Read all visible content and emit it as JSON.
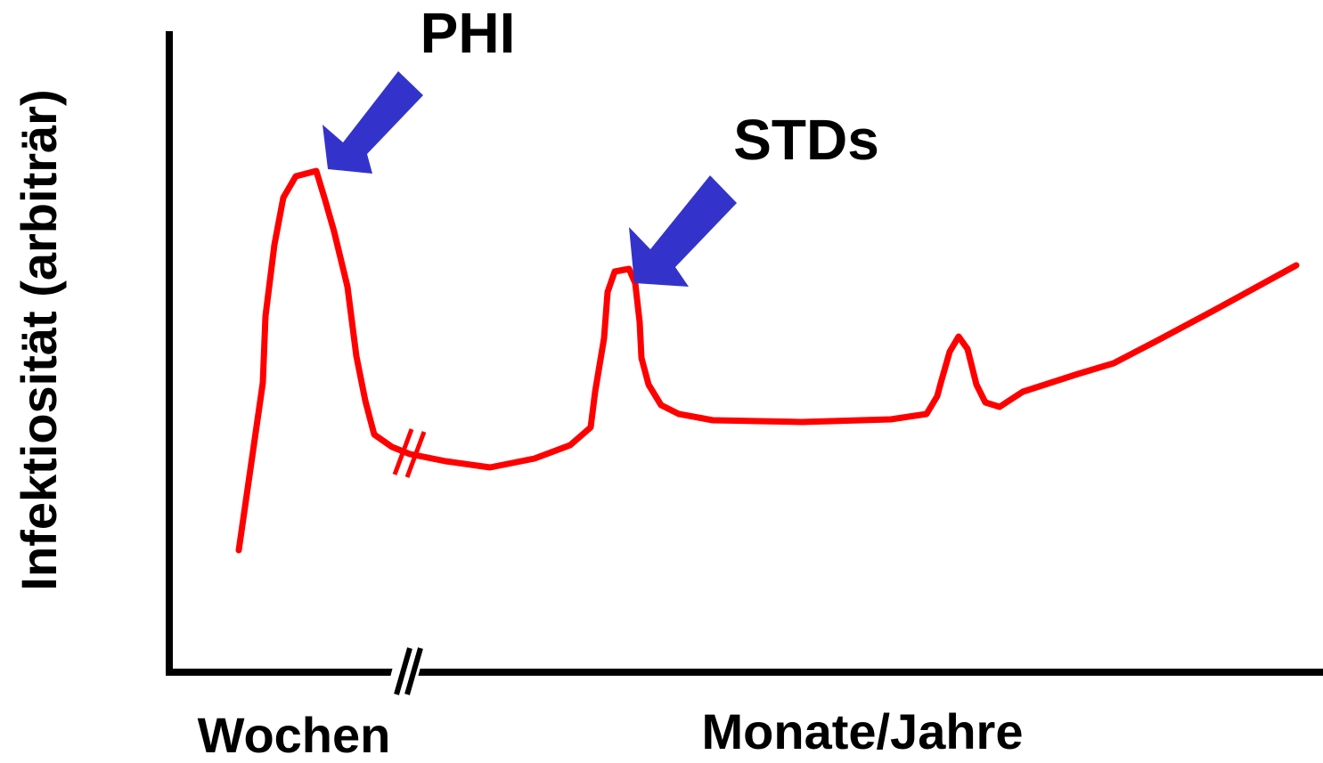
{
  "y_axis_label": "Infektiosität (arbiträr)",
  "x_labels": [
    "Wochen",
    "Monate/Jahre"
  ],
  "annotations": [
    "PHI",
    "STDs"
  ]
}
